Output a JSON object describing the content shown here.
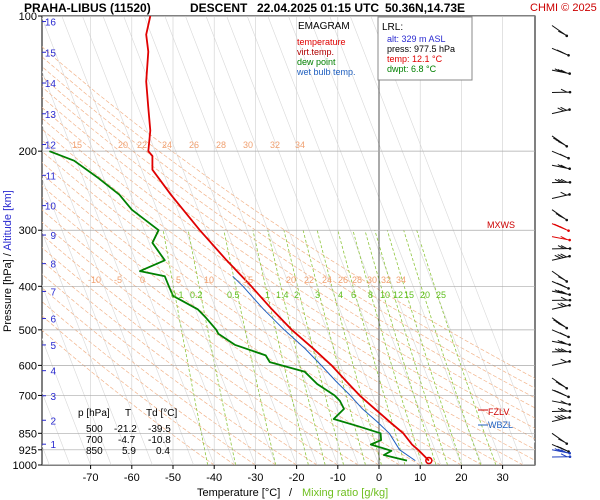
{
  "header": {
    "station": "PRAHA-LIBUS (11520)",
    "mode": "DESCENT",
    "datetime": "22.04.2025 01:15 UTC",
    "coords": "50.36N,14.73E",
    "copyright": "CHMI © 2025"
  },
  "legend": {
    "title": "EMAGRAM",
    "items": [
      {
        "label": "temperature",
        "color": "#e00000"
      },
      {
        "label": "virt.temp.",
        "color": "#b00000"
      },
      {
        "label": "dew point",
        "color": "#008000"
      },
      {
        "label": "wet bulb temp.",
        "color": "#1f5fbf"
      }
    ]
  },
  "info_box": {
    "title": "LRL:",
    "alt": "alt: 329 m ASL",
    "press": "press: 977.5 hPa",
    "temp": "temp: 12.1 °C",
    "dwpt": "dwpt: 6.8 °C"
  },
  "table": {
    "headers": [
      "p [hPa]",
      "T",
      "Td [°C]"
    ],
    "rows": [
      [
        "500",
        "-21.2",
        "-39.5"
      ],
      [
        "700",
        "-4.7",
        "-10.8"
      ],
      [
        "850",
        "5.9",
        "0.4"
      ]
    ]
  },
  "levels": {
    "mxws": "MXWS",
    "fzlv": "FZLV",
    "wbzl": "WBZL"
  },
  "axis": {
    "xlabel_temp": "Temperature [°C]",
    "xlabel_sep": "/",
    "xlabel_mix": "Mixing ratio [g/kg]",
    "ylabel_press": "Pressure [hPa]",
    "ylabel_sep": " / ",
    "ylabel_alt": "Altitude [km]"
  },
  "colors": {
    "temperature": "#e00000",
    "dewpoint": "#008000",
    "wetbulb": "#1f5fbf",
    "mixing": "#8fc63f",
    "dry_adiabat": "#f2b38a",
    "isotherm": "#999999",
    "blue_label": "#2a2ad0"
  },
  "chart_data": {
    "type": "line",
    "ylog": true,
    "xlim": [
      -80,
      40
    ],
    "ylim": [
      1000,
      100
    ],
    "x_ticks": [
      -70,
      -60,
      -50,
      -40,
      -30,
      -20,
      -10,
      0,
      10,
      20,
      30
    ],
    "p_ticks": [
      100,
      200,
      300,
      400,
      500,
      600,
      700,
      850,
      925,
      1000
    ],
    "alt_ticks": [
      1,
      2,
      3,
      4,
      5,
      6,
      7,
      8,
      9,
      10,
      11,
      12,
      13,
      14,
      15,
      16
    ],
    "mix_labels_lower": [
      "0.1",
      "0.2",
      "0.5",
      "1",
      "1.4",
      "2",
      "3",
      "4",
      "6",
      "8",
      "10",
      "12",
      "15",
      "20",
      "25"
    ],
    "adiabat_labels_lower": [
      "-10",
      "-5",
      "0",
      "5",
      "10",
      "15",
      "20",
      "22",
      "24",
      "26",
      "28",
      "30",
      "32",
      "34"
    ],
    "adiabat_labels_upper": [
      "15",
      "20",
      "22",
      "24",
      "26",
      "28",
      "30",
      "32",
      "34"
    ],
    "series": [
      {
        "name": "temperature",
        "points": [
          [
            977.5,
            12.1
          ],
          [
            925,
            9.5
          ],
          [
            900,
            8
          ],
          [
            850,
            5.9
          ],
          [
            800,
            2.5
          ],
          [
            750,
            -1
          ],
          [
            700,
            -4.7
          ],
          [
            650,
            -8
          ],
          [
            600,
            -11.5
          ],
          [
            550,
            -16
          ],
          [
            500,
            -21.2
          ],
          [
            450,
            -26
          ],
          [
            400,
            -31
          ],
          [
            350,
            -37
          ],
          [
            300,
            -43.5
          ],
          [
            250,
            -50.5
          ],
          [
            220,
            -55
          ],
          [
            205,
            -55
          ],
          [
            200,
            -56
          ],
          [
            180,
            -55.5
          ],
          [
            160,
            -56
          ],
          [
            140,
            -56.5
          ],
          [
            120,
            -56
          ],
          [
            110,
            -56.5
          ],
          [
            100,
            -55.5
          ]
        ]
      },
      {
        "name": "dew point",
        "points": [
          [
            977.5,
            6.8
          ],
          [
            950,
            1.2
          ],
          [
            930,
            3
          ],
          [
            900,
            -2
          ],
          [
            880,
            0.5
          ],
          [
            850,
            0.4
          ],
          [
            820,
            -5
          ],
          [
            790,
            -11
          ],
          [
            750,
            -8.5
          ],
          [
            720,
            -9.5
          ],
          [
            700,
            -10.8
          ],
          [
            660,
            -15
          ],
          [
            620,
            -18
          ],
          [
            590,
            -26.5
          ],
          [
            570,
            -27.5
          ],
          [
            540,
            -35
          ],
          [
            510,
            -39
          ],
          [
            500,
            -39.5
          ],
          [
            470,
            -42
          ],
          [
            450,
            -44
          ],
          [
            420,
            -50
          ],
          [
            400,
            -51
          ],
          [
            380,
            -52
          ],
          [
            370,
            -58
          ],
          [
            350,
            -52
          ],
          [
            320,
            -55
          ],
          [
            300,
            -53.5
          ],
          [
            270,
            -60
          ],
          [
            250,
            -63
          ],
          [
            230,
            -68
          ],
          [
            210,
            -74
          ],
          [
            200,
            -80
          ]
        ]
      },
      {
        "name": "wet bulb temp.",
        "points": [
          [
            977.5,
            8.8
          ],
          [
            925,
            5
          ],
          [
            850,
            2.5
          ],
          [
            800,
            -0.5
          ],
          [
            750,
            -4
          ],
          [
            700,
            -7
          ],
          [
            650,
            -10.5
          ],
          [
            600,
            -14
          ],
          [
            550,
            -18
          ],
          [
            500,
            -23
          ],
          [
            450,
            -28
          ],
          [
            400,
            -33
          ],
          [
            380,
            -35.5
          ]
        ]
      }
    ]
  }
}
